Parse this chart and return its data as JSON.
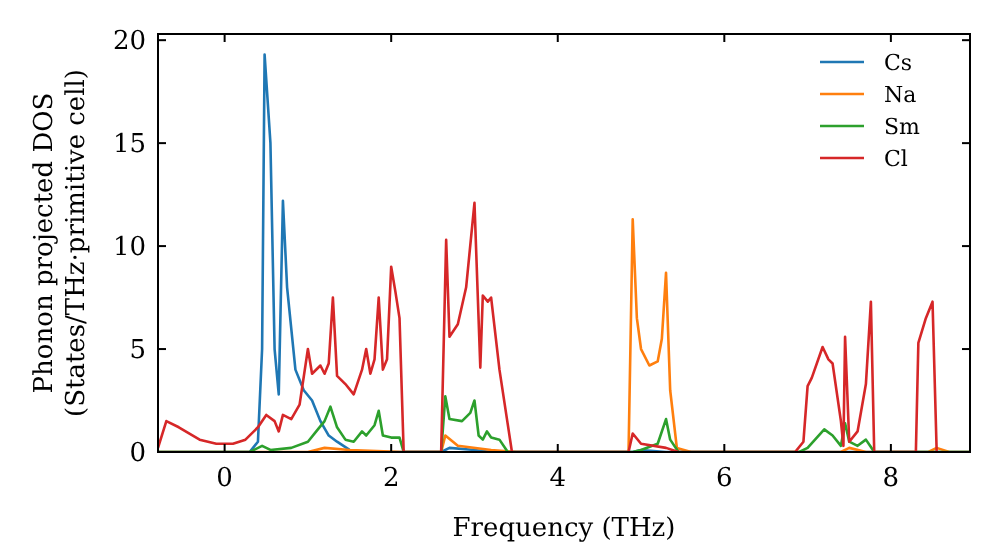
{
  "chart_data": {
    "type": "line",
    "xlabel": "Frequency (THz)",
    "ylabel": "Phonon projected DOS\n(States/THz·primitive cell)",
    "xlim": [
      -0.8,
      8.95
    ],
    "ylim": [
      0,
      20.3
    ],
    "xticks": [
      0,
      2,
      4,
      6,
      8
    ],
    "yticks": [
      0,
      5,
      10,
      15,
      20
    ],
    "legend": "top right",
    "grid": false,
    "marker": "none",
    "line_style": "solid",
    "series": [
      {
        "name": "Cs",
        "color": "#1f77b4",
        "x": [
          -0.8,
          0.3,
          0.4,
          0.45,
          0.48,
          0.55,
          0.6,
          0.65,
          0.7,
          0.75,
          0.85,
          0.95,
          1.05,
          1.15,
          1.25,
          1.35,
          1.5,
          1.7,
          2.6,
          2.7,
          3.0,
          3.2,
          4.9,
          5.0,
          5.3,
          8.95
        ],
        "values": [
          0,
          0,
          0.5,
          5,
          19.3,
          15,
          5,
          2.8,
          12.2,
          8,
          4,
          3,
          2.5,
          1.5,
          0.8,
          0.5,
          0.1,
          0,
          0,
          0.2,
          0.1,
          0,
          0,
          0.1,
          0,
          0
        ]
      },
      {
        "name": "Na",
        "color": "#ff7f0e",
        "x": [
          -0.8,
          1.0,
          1.2,
          1.5,
          2.15,
          2.6,
          2.65,
          2.8,
          3.2,
          3.5,
          4.85,
          4.9,
          4.95,
          5.0,
          5.1,
          5.2,
          5.25,
          5.3,
          5.35,
          5.43,
          5.6,
          7.4,
          7.5,
          7.7,
          8.45,
          8.55,
          8.7,
          8.95
        ],
        "values": [
          0,
          0,
          0.2,
          0.1,
          0,
          0,
          0.8,
          0.3,
          0.1,
          0,
          0,
          11.3,
          6.5,
          5,
          4.2,
          4.4,
          5.5,
          8.7,
          3,
          0.2,
          0,
          0,
          0.2,
          0,
          0,
          0.2,
          0,
          0
        ]
      },
      {
        "name": "Sm",
        "color": "#2ca02c",
        "x": [
          -0.8,
          0.3,
          0.45,
          0.55,
          0.8,
          1.0,
          1.1,
          1.2,
          1.27,
          1.35,
          1.45,
          1.55,
          1.65,
          1.7,
          1.8,
          1.85,
          1.9,
          2.0,
          2.1,
          2.15,
          2.6,
          2.65,
          2.7,
          2.85,
          2.95,
          3.0,
          3.05,
          3.1,
          3.15,
          3.2,
          3.3,
          3.4,
          4.9,
          5.0,
          5.2,
          5.3,
          5.35,
          5.45,
          6.9,
          7.0,
          7.2,
          7.3,
          7.4,
          7.45,
          7.5,
          7.6,
          7.7,
          7.75,
          7.8,
          8.95
        ],
        "values": [
          0,
          0,
          0.3,
          0.1,
          0.2,
          0.5,
          1.0,
          1.5,
          2.2,
          1.2,
          0.6,
          0.5,
          1.0,
          0.8,
          1.3,
          2.0,
          0.8,
          0.7,
          0.7,
          0,
          0,
          2.7,
          1.6,
          1.5,
          1.9,
          2.5,
          0.8,
          0.6,
          1.0,
          0.7,
          0.6,
          0,
          0,
          0.1,
          0.4,
          1.6,
          0.6,
          0,
          0,
          0.2,
          1.1,
          0.8,
          0.3,
          1.4,
          0.5,
          0.3,
          0.6,
          0.3,
          0,
          0
        ]
      },
      {
        "name": "Cl",
        "color": "#d62728",
        "x": [
          -0.8,
          -0.7,
          -0.55,
          -0.3,
          -0.1,
          0.1,
          0.25,
          0.4,
          0.5,
          0.6,
          0.65,
          0.7,
          0.8,
          0.9,
          1.0,
          1.05,
          1.15,
          1.2,
          1.25,
          1.3,
          1.35,
          1.45,
          1.55,
          1.65,
          1.7,
          1.75,
          1.8,
          1.85,
          1.9,
          1.95,
          2.0,
          2.05,
          2.1,
          2.15,
          2.6,
          2.66,
          2.7,
          2.8,
          2.9,
          3.0,
          3.07,
          3.1,
          3.16,
          3.2,
          3.3,
          3.45,
          4.85,
          4.9,
          5.0,
          5.3,
          5.45,
          6.85,
          6.95,
          7.0,
          7.05,
          7.18,
          7.25,
          7.3,
          7.4,
          7.43,
          7.45,
          7.5,
          7.6,
          7.7,
          7.76,
          7.8,
          8.3,
          8.33,
          8.42,
          8.5,
          8.55
        ],
        "values": [
          0.2,
          1.5,
          1.2,
          0.6,
          0.4,
          0.4,
          0.6,
          1.2,
          1.8,
          1.5,
          1.0,
          1.8,
          1.6,
          2.3,
          5.0,
          3.8,
          4.2,
          3.8,
          4.3,
          7.5,
          3.7,
          3.3,
          2.8,
          4.0,
          5.0,
          3.8,
          4.5,
          7.5,
          4.0,
          4.5,
          9.0,
          7.8,
          6.5,
          0,
          0,
          10.3,
          5.6,
          6.2,
          8.0,
          12.1,
          4.1,
          7.6,
          7.3,
          7.5,
          4.0,
          0,
          0,
          0.9,
          0.4,
          0.2,
          0,
          0,
          0.5,
          3.2,
          3.6,
          5.1,
          4.5,
          4.3,
          1.5,
          0.3,
          5.6,
          0.5,
          1.0,
          3.3,
          7.3,
          0,
          0,
          5.3,
          6.5,
          7.3,
          0
        ]
      }
    ]
  }
}
